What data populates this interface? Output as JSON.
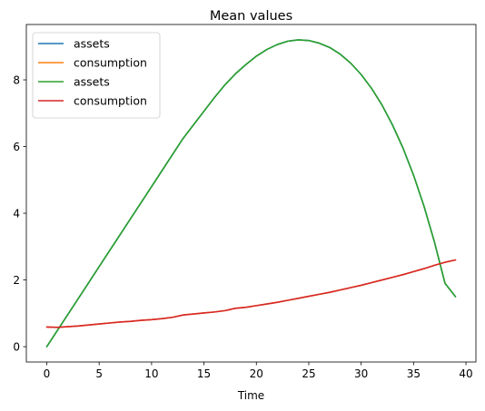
{
  "chart_data": {
    "type": "line",
    "title": "Mean values",
    "xlabel": "Time",
    "ylabel": "",
    "xlim": [
      -1.95,
      40.95
    ],
    "ylim": [
      -0.46,
      9.66
    ],
    "xticks": [
      0,
      5,
      10,
      15,
      20,
      25,
      30,
      35,
      40
    ],
    "yticks": [
      0,
      2,
      4,
      6,
      8
    ],
    "grid": false,
    "legend_position": "top-left",
    "series": [
      {
        "name": "assets",
        "color": "#1f77b4",
        "x": [
          0,
          1,
          2,
          3,
          4,
          5,
          6,
          7,
          8,
          9,
          10,
          11,
          12,
          13,
          14,
          15,
          16,
          17,
          18,
          19,
          20,
          21,
          22,
          23,
          24,
          25,
          26,
          27,
          28,
          29,
          30,
          31,
          32,
          33,
          34,
          35,
          36,
          37,
          38,
          39
        ],
        "values": [
          0,
          0.48,
          0.96,
          1.44,
          1.92,
          2.4,
          2.88,
          3.36,
          3.84,
          4.32,
          4.8,
          5.28,
          5.76,
          6.24,
          6.65,
          7.06,
          7.47,
          7.85,
          8.18,
          8.46,
          8.71,
          8.91,
          9.06,
          9.16,
          9.2,
          9.18,
          9.1,
          8.97,
          8.77,
          8.5,
          8.16,
          7.74,
          7.24,
          6.64,
          5.95,
          5.14,
          4.21,
          3.13,
          1.9,
          1.5
        ]
      },
      {
        "name": "consumption",
        "color": "#ff7f0e",
        "x": [
          0,
          1,
          2,
          3,
          4,
          5,
          6,
          7,
          8,
          9,
          10,
          11,
          12,
          13,
          14,
          15,
          16,
          17,
          18,
          19,
          20,
          21,
          22,
          23,
          24,
          25,
          26,
          27,
          28,
          29,
          30,
          31,
          32,
          33,
          34,
          35,
          36,
          37,
          38,
          39
        ],
        "values": [
          0.59,
          0.58,
          0.6,
          0.62,
          0.65,
          0.68,
          0.71,
          0.74,
          0.76,
          0.79,
          0.81,
          0.84,
          0.88,
          0.95,
          0.98,
          1.01,
          1.04,
          1.08,
          1.15,
          1.18,
          1.23,
          1.28,
          1.33,
          1.39,
          1.45,
          1.51,
          1.57,
          1.63,
          1.7,
          1.77,
          1.84,
          1.92,
          2.0,
          2.08,
          2.16,
          2.25,
          2.34,
          2.44,
          2.53,
          2.6
        ]
      },
      {
        "name": "assets",
        "color": "#2ca02c",
        "x": [
          0,
          1,
          2,
          3,
          4,
          5,
          6,
          7,
          8,
          9,
          10,
          11,
          12,
          13,
          14,
          15,
          16,
          17,
          18,
          19,
          20,
          21,
          22,
          23,
          24,
          25,
          26,
          27,
          28,
          29,
          30,
          31,
          32,
          33,
          34,
          35,
          36,
          37,
          38,
          39
        ],
        "values": [
          0,
          0.48,
          0.96,
          1.44,
          1.92,
          2.4,
          2.88,
          3.36,
          3.84,
          4.32,
          4.8,
          5.28,
          5.76,
          6.24,
          6.65,
          7.06,
          7.47,
          7.85,
          8.18,
          8.46,
          8.71,
          8.91,
          9.06,
          9.16,
          9.2,
          9.18,
          9.1,
          8.97,
          8.77,
          8.5,
          8.16,
          7.74,
          7.24,
          6.64,
          5.95,
          5.14,
          4.21,
          3.13,
          1.9,
          1.5
        ]
      },
      {
        "name": "consumption",
        "color": "#d62728",
        "x": [
          0,
          1,
          2,
          3,
          4,
          5,
          6,
          7,
          8,
          9,
          10,
          11,
          12,
          13,
          14,
          15,
          16,
          17,
          18,
          19,
          20,
          21,
          22,
          23,
          24,
          25,
          26,
          27,
          28,
          29,
          30,
          31,
          32,
          33,
          34,
          35,
          36,
          37,
          38,
          39
        ],
        "values": [
          0.59,
          0.58,
          0.6,
          0.62,
          0.65,
          0.68,
          0.71,
          0.74,
          0.76,
          0.79,
          0.81,
          0.84,
          0.88,
          0.95,
          0.98,
          1.01,
          1.04,
          1.08,
          1.15,
          1.18,
          1.23,
          1.28,
          1.33,
          1.39,
          1.45,
          1.51,
          1.57,
          1.63,
          1.7,
          1.77,
          1.84,
          1.92,
          2.0,
          2.08,
          2.16,
          2.25,
          2.34,
          2.44,
          2.53,
          2.6
        ]
      }
    ]
  }
}
